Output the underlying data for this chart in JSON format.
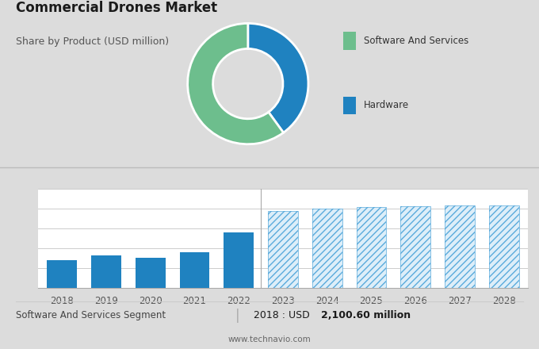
{
  "title": "Commercial Drones Market",
  "subtitle": "Share by Product (USD million)",
  "bg_color_top": "#dcdcdc",
  "bg_color_bottom": "#ffffff",
  "pie_values": [
    40,
    60
  ],
  "pie_colors": [
    "#1f82c0",
    "#6dbe8d"
  ],
  "pie_labels": [
    "Hardware",
    "Software And Services"
  ],
  "bar_years": [
    2018,
    2019,
    2020,
    2021,
    2022,
    2023,
    2024,
    2025,
    2026,
    2027,
    2028
  ],
  "bar_values": [
    2.1,
    2.45,
    2.3,
    2.7,
    4.2,
    5.8,
    6.0,
    6.1,
    6.15,
    6.2,
    6.25
  ],
  "bar_solid_color": "#1f82c0",
  "bar_hatch_color": "#5aabdc",
  "bar_hatch_bg": "#ddeef9",
  "footer_left": "Software And Services Segment",
  "footer_right_normal": "2018 : USD ",
  "footer_bold_right": "2,100.60 million",
  "footer_url": "www.technavio.com",
  "solid_years_count": 5,
  "legend_software": "Software And Services",
  "legend_hardware": "Hardware",
  "sep_color": "#bbbbbb",
  "grid_color": "#cccccc",
  "tick_color": "#555555"
}
